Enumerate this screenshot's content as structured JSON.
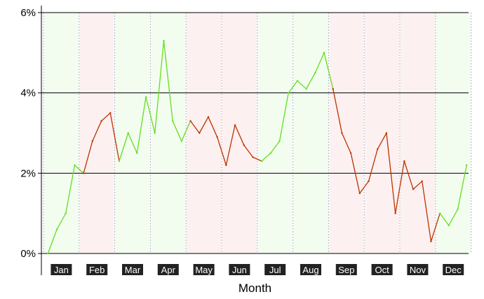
{
  "chart_data": {
    "type": "line",
    "title": "",
    "xlabel": "Month",
    "ylabel": "",
    "ylim": [
      0,
      6
    ],
    "yticks": [
      0,
      2,
      4,
      6
    ],
    "ytick_labels": [
      "0%",
      "2%",
      "4%",
      "6%"
    ],
    "grid": "horizontal lines at y ticks; dotted vertical lines between months",
    "legend": "none",
    "months": [
      {
        "label": "Jan",
        "trend": "up"
      },
      {
        "label": "Feb",
        "trend": "down"
      },
      {
        "label": "Mar",
        "trend": "up"
      },
      {
        "label": "Apr",
        "trend": "up"
      },
      {
        "label": "May",
        "trend": "down"
      },
      {
        "label": "Jun",
        "trend": "down"
      },
      {
        "label": "Jul",
        "trend": "up"
      },
      {
        "label": "Aug",
        "trend": "up"
      },
      {
        "label": "Sep",
        "trend": "down"
      },
      {
        "label": "Oct",
        "trend": "down"
      },
      {
        "label": "Nov",
        "trend": "down"
      },
      {
        "label": "Dec",
        "trend": "up"
      }
    ],
    "colors": {
      "up_line": "#66dd22",
      "down_line": "#bb3300",
      "up_band": "#f2fdef",
      "down_band": "#fdf0f0",
      "month_label_bg": "#222222"
    },
    "series": [
      {
        "points_per_month": 4,
        "values": [
          0.0,
          0.6,
          1.0,
          2.2,
          2.0,
          2.8,
          3.3,
          3.5,
          2.3,
          3.0,
          2.5,
          3.9,
          3.0,
          5.3,
          3.3,
          2.8,
          3.3,
          3.0,
          3.4,
          2.9,
          2.2,
          3.2,
          2.7,
          2.4,
          2.3,
          2.5,
          2.8,
          4.0,
          4.3,
          4.1,
          4.5,
          5.0,
          4.1,
          3.0,
          2.5,
          1.5,
          1.8,
          2.6,
          3.0,
          1.0,
          2.3,
          1.6,
          1.8,
          0.3,
          1.0,
          0.7,
          1.1,
          2.2
        ]
      }
    ]
  }
}
